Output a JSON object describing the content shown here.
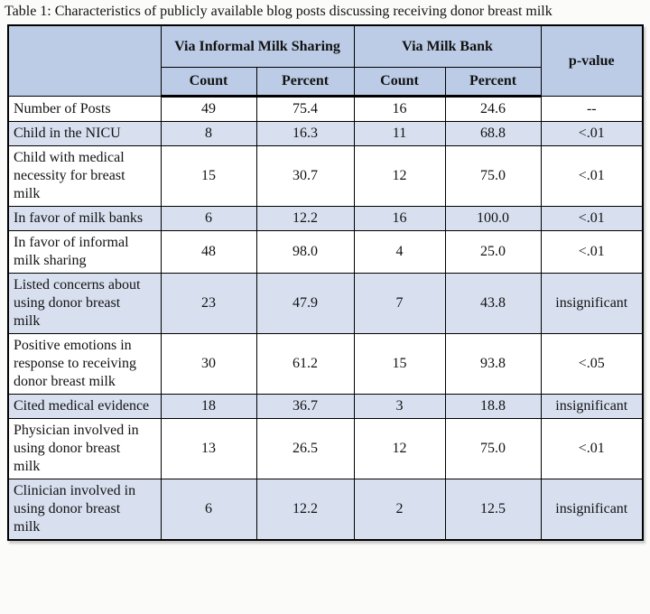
{
  "title": "Table 1: Characteristics of publicly available blog posts discussing receiving donor breast milk",
  "table": {
    "column_groups": [
      {
        "label": "Via Informal Milk Sharing"
      },
      {
        "label": "Via Milk Bank"
      }
    ],
    "p_value_header": "p-value",
    "sub_headers": [
      "Count",
      "Percent",
      "Count",
      "Percent"
    ],
    "rows": [
      {
        "label": "Number of Posts",
        "ims_count": "49",
        "ims_percent": "75.4",
        "mb_count": "16",
        "mb_percent": "24.6",
        "p_value": "--",
        "shaded": false
      },
      {
        "label": "Child in the NICU",
        "ims_count": "8",
        "ims_percent": "16.3",
        "mb_count": "11",
        "mb_percent": "68.8",
        "p_value": "<.01",
        "shaded": true
      },
      {
        "label": "Child with medical necessity for breast milk",
        "ims_count": "15",
        "ims_percent": "30.7",
        "mb_count": "12",
        "mb_percent": "75.0",
        "p_value": "<.01",
        "shaded": false
      },
      {
        "label": "In favor of milk banks",
        "ims_count": "6",
        "ims_percent": "12.2",
        "mb_count": "16",
        "mb_percent": "100.0",
        "p_value": "<.01",
        "shaded": true
      },
      {
        "label": "In favor of informal milk sharing",
        "ims_count": "48",
        "ims_percent": "98.0",
        "mb_count": "4",
        "mb_percent": "25.0",
        "p_value": "<.01",
        "shaded": false
      },
      {
        "label": "Listed concerns about using donor breast milk",
        "ims_count": "23",
        "ims_percent": "47.9",
        "mb_count": "7",
        "mb_percent": "43.8",
        "p_value": "insignificant",
        "shaded": true
      },
      {
        "label": "Positive emotions in response to receiving donor breast milk",
        "ims_count": "30",
        "ims_percent": "61.2",
        "mb_count": "15",
        "mb_percent": "93.8",
        "p_value": "<.05",
        "shaded": false
      },
      {
        "label": "Cited medical evidence",
        "ims_count": "18",
        "ims_percent": "36.7",
        "mb_count": "3",
        "mb_percent": "18.8",
        "p_value": "insignificant",
        "shaded": true
      },
      {
        "label": "Physician involved in using donor breast milk",
        "ims_count": "13",
        "ims_percent": "26.5",
        "mb_count": "12",
        "mb_percent": "75.0",
        "p_value": "<.01",
        "shaded": false
      },
      {
        "label": "Clinician involved in using donor breast milk",
        "ims_count": "6",
        "ims_percent": "12.2",
        "mb_count": "2",
        "mb_percent": "12.5",
        "p_value": "insignificant",
        "shaded": true
      }
    ]
  },
  "colors": {
    "header_bg": "#bccce6",
    "shaded_row_bg": "#d8e0f0",
    "border": "#000000",
    "page_bg": "#fbfbfa"
  }
}
